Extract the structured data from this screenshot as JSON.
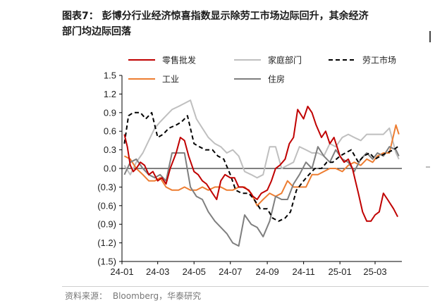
{
  "title": {
    "line1": "图表7：   彭博分行业经济惊喜指数显示除劳工市场边际回升，其余经济",
    "line2": "部门均边际回落"
  },
  "source": {
    "label": "资料来源：",
    "text": "Bloomberg，华泰研究"
  },
  "colors": {
    "retail": "#c00000",
    "household": "#bfbfbf",
    "labor": "#000000",
    "industry": "#ed7d31",
    "housing": "#7f7f7f"
  },
  "chart_data": {
    "type": "line",
    "title": "",
    "xlabel": "",
    "ylabel": "",
    "ylim": [
      -1.5,
      1.5
    ],
    "yticks": [
      1.5,
      1.2,
      0.9,
      0.6,
      0.3,
      0.0,
      -0.3,
      -0.6,
      -0.9,
      -1.2,
      -1.5
    ],
    "ytick_labels": [
      "1.5",
      "1.2",
      "0.9",
      "0.6",
      "0.3",
      "0.0",
      "(0.3)",
      "(0.6)",
      "(0.9)",
      "(1.2)",
      "(1.5)"
    ],
    "xlim": [
      "2024-01-01",
      "2025-04-15"
    ],
    "xtick_labels": [
      "24-01",
      "24-03",
      "24-05",
      "24-07",
      "24-09",
      "24-11",
      "25-01",
      "25-03"
    ],
    "xtick_dates": [
      "2024-01-01",
      "2024-03-01",
      "2024-05-01",
      "2024-07-01",
      "2024-09-01",
      "2024-11-01",
      "2025-01-01",
      "2025-03-01"
    ],
    "legend_position": "top",
    "series": [
      {
        "name": "零售批发",
        "key": "retail",
        "dash": "solid",
        "x": [
          "2024-01-05",
          "2024-01-10",
          "2024-01-15",
          "2024-01-20",
          "2024-01-25",
          "2024-02-01",
          "2024-02-08",
          "2024-02-15",
          "2024-02-22",
          "2024-03-01",
          "2024-03-08",
          "2024-03-15",
          "2024-03-22",
          "2024-04-01",
          "2024-04-08",
          "2024-04-15",
          "2024-04-22",
          "2024-05-01",
          "2024-05-08",
          "2024-05-15",
          "2024-05-22",
          "2024-06-01",
          "2024-06-08",
          "2024-06-15",
          "2024-06-22",
          "2024-07-01",
          "2024-07-08",
          "2024-07-15",
          "2024-07-22",
          "2024-08-01",
          "2024-08-08",
          "2024-08-15",
          "2024-08-22",
          "2024-09-01",
          "2024-09-08",
          "2024-09-15",
          "2024-09-22",
          "2024-10-01",
          "2024-10-08",
          "2024-10-15",
          "2024-10-22",
          "2024-11-01",
          "2024-11-08",
          "2024-11-15",
          "2024-11-22",
          "2024-12-01",
          "2024-12-08",
          "2024-12-15",
          "2024-12-22",
          "2025-01-01",
          "2025-01-08",
          "2025-01-15",
          "2025-01-22",
          "2025-02-01",
          "2025-02-08",
          "2025-02-15",
          "2025-02-22",
          "2025-03-01",
          "2025-03-08",
          "2025-03-15",
          "2025-03-22",
          "2025-04-01",
          "2025-04-08"
        ],
        "y": [
          0.55,
          0.35,
          0.05,
          -0.05,
          0.0,
          0.1,
          0.05,
          -0.1,
          -0.05,
          -0.2,
          -0.15,
          -0.25,
          0.0,
          0.25,
          0.5,
          0.45,
          0.2,
          -0.05,
          -0.1,
          -0.2,
          -0.25,
          -0.4,
          -0.5,
          -0.2,
          -0.1,
          -0.15,
          -0.15,
          -0.3,
          -0.3,
          -0.35,
          -0.45,
          -0.5,
          -0.4,
          -0.35,
          -0.2,
          0.0,
          0.05,
          0.15,
          0.4,
          0.5,
          0.95,
          0.8,
          1.0,
          0.9,
          0.7,
          0.5,
          0.6,
          0.4,
          0.5,
          0.2,
          0.1,
          0.15,
          0.0,
          -0.4,
          -0.7,
          -0.85,
          -0.85,
          -0.75,
          -0.7,
          -0.4,
          -0.5,
          -0.65,
          -0.78
        ]
      },
      {
        "name": "家庭部门",
        "key": "household",
        "dash": "solid",
        "x": [
          "2024-01-05",
          "2024-01-15",
          "2024-01-25",
          "2024-02-05",
          "2024-02-15",
          "2024-02-25",
          "2024-03-05",
          "2024-03-15",
          "2024-03-25",
          "2024-04-05",
          "2024-04-15",
          "2024-04-25",
          "2024-05-05",
          "2024-05-15",
          "2024-05-25",
          "2024-06-05",
          "2024-06-15",
          "2024-06-25",
          "2024-07-05",
          "2024-07-15",
          "2024-07-25",
          "2024-08-05",
          "2024-08-15",
          "2024-08-25",
          "2024-09-05",
          "2024-09-15",
          "2024-09-25",
          "2024-10-05",
          "2024-10-15",
          "2024-10-25",
          "2024-11-05",
          "2024-11-15",
          "2024-11-25",
          "2024-12-05",
          "2024-12-15",
          "2024-12-25",
          "2025-01-05",
          "2025-01-15",
          "2025-01-25",
          "2025-02-05",
          "2025-02-15",
          "2025-02-25",
          "2025-03-05",
          "2025-03-15",
          "2025-03-25",
          "2025-04-05",
          "2025-04-10"
        ],
        "y": [
          0.05,
          -0.1,
          0.1,
          0.25,
          0.45,
          0.65,
          0.75,
          0.85,
          0.95,
          1.0,
          1.05,
          1.1,
          0.8,
          0.65,
          0.5,
          0.4,
          0.35,
          0.25,
          0.3,
          0.2,
          -0.05,
          -0.1,
          -0.15,
          -0.1,
          0.35,
          0.35,
          0.0,
          0.05,
          0.1,
          0.35,
          0.3,
          0.25,
          0.25,
          0.2,
          0.4,
          0.35,
          0.5,
          0.55,
          0.5,
          0.45,
          0.55,
          0.55,
          0.55,
          0.55,
          0.65,
          0.25,
          0.15
        ]
      },
      {
        "name": "劳工市场",
        "key": "labor",
        "dash": "dashed",
        "x": [
          "2024-01-05",
          "2024-01-12",
          "2024-01-20",
          "2024-02-01",
          "2024-02-10",
          "2024-02-20",
          "2024-03-01",
          "2024-03-10",
          "2024-03-20",
          "2024-04-01",
          "2024-04-10",
          "2024-04-20",
          "2024-05-01",
          "2024-05-10",
          "2024-05-20",
          "2024-06-01",
          "2024-06-10",
          "2024-06-20",
          "2024-07-01",
          "2024-07-10",
          "2024-07-20",
          "2024-08-01",
          "2024-08-10",
          "2024-08-20",
          "2024-09-01",
          "2024-09-10",
          "2024-09-20",
          "2024-10-01",
          "2024-10-10",
          "2024-10-20",
          "2024-11-01",
          "2024-11-10",
          "2024-11-20",
          "2024-12-01",
          "2024-12-10",
          "2024-12-20",
          "2025-01-01",
          "2025-01-10",
          "2025-01-20",
          "2025-02-01",
          "2025-02-10",
          "2025-02-20",
          "2025-03-01",
          "2025-03-10",
          "2025-03-20",
          "2025-04-01",
          "2025-04-08"
        ],
        "y": [
          0.4,
          0.85,
          0.9,
          0.9,
          0.8,
          0.9,
          0.5,
          0.55,
          0.65,
          0.7,
          0.75,
          0.85,
          0.4,
          0.35,
          0.3,
          0.3,
          0.2,
          0.15,
          -0.1,
          -0.35,
          -0.4,
          -0.4,
          -0.5,
          -0.65,
          -0.65,
          -0.8,
          -0.85,
          -0.8,
          -0.7,
          -0.35,
          -0.2,
          -0.1,
          0.0,
          0.0,
          0.1,
          0.1,
          0.2,
          0.25,
          0.3,
          0.1,
          0.2,
          0.25,
          0.15,
          0.2,
          0.25,
          0.3,
          0.35
        ]
      },
      {
        "name": "工业",
        "key": "industry",
        "dash": "solid",
        "x": [
          "2024-01-05",
          "2024-01-15",
          "2024-01-25",
          "2024-02-05",
          "2024-02-15",
          "2024-02-25",
          "2024-03-05",
          "2024-03-15",
          "2024-03-25",
          "2024-04-05",
          "2024-04-15",
          "2024-04-25",
          "2024-05-05",
          "2024-05-15",
          "2024-05-25",
          "2024-06-05",
          "2024-06-15",
          "2024-06-25",
          "2024-07-05",
          "2024-07-15",
          "2024-07-25",
          "2024-08-05",
          "2024-08-15",
          "2024-08-25",
          "2024-09-05",
          "2024-09-15",
          "2024-09-25",
          "2024-10-05",
          "2024-10-15",
          "2024-10-25",
          "2024-11-05",
          "2024-11-15",
          "2024-11-25",
          "2024-12-05",
          "2024-12-15",
          "2024-12-25",
          "2025-01-05",
          "2025-01-15",
          "2025-01-25",
          "2025-02-05",
          "2025-02-15",
          "2025-02-25",
          "2025-03-05",
          "2025-03-15",
          "2025-03-25",
          "2025-04-05",
          "2025-04-10"
        ],
        "y": [
          0.2,
          0.15,
          0.0,
          -0.1,
          -0.2,
          -0.2,
          -0.15,
          -0.3,
          -0.35,
          -0.35,
          -0.3,
          -0.35,
          -0.35,
          -0.3,
          -0.35,
          -0.3,
          -0.3,
          -0.35,
          -0.35,
          -0.3,
          -0.3,
          -0.4,
          -0.6,
          -0.5,
          -0.4,
          -0.45,
          -0.4,
          -0.2,
          -0.3,
          -0.3,
          -0.3,
          -0.1,
          -0.1,
          -0.05,
          0.0,
          0.0,
          -0.05,
          0.05,
          0.1,
          0.05,
          0.15,
          0.1,
          0.2,
          0.25,
          0.25,
          0.7,
          0.55
        ]
      },
      {
        "name": "住房",
        "key": "housing",
        "dash": "solid",
        "x": [
          "2024-01-05",
          "2024-01-15",
          "2024-01-25",
          "2024-02-05",
          "2024-02-15",
          "2024-02-25",
          "2024-03-05",
          "2024-03-15",
          "2024-03-25",
          "2024-04-05",
          "2024-04-15",
          "2024-04-25",
          "2024-05-05",
          "2024-05-15",
          "2024-05-25",
          "2024-06-05",
          "2024-06-15",
          "2024-06-25",
          "2024-07-05",
          "2024-07-15",
          "2024-07-25",
          "2024-08-05",
          "2024-08-15",
          "2024-08-25",
          "2024-09-05",
          "2024-09-15",
          "2024-09-25",
          "2024-10-05",
          "2024-10-15",
          "2024-10-25",
          "2024-11-05",
          "2024-11-15",
          "2024-11-25",
          "2024-12-05",
          "2024-12-15",
          "2024-12-25",
          "2025-01-05",
          "2025-01-15",
          "2025-01-25",
          "2025-02-05",
          "2025-02-15",
          "2025-02-25",
          "2025-03-05",
          "2025-03-15",
          "2025-03-25",
          "2025-04-05",
          "2025-04-10"
        ],
        "y": [
          -0.1,
          0.1,
          0.15,
          0.0,
          -0.1,
          -0.15,
          -0.1,
          -0.2,
          0.25,
          0.25,
          0.25,
          -0.3,
          -0.45,
          -0.5,
          -0.7,
          -0.85,
          -0.95,
          -1.05,
          -1.2,
          -1.25,
          -0.75,
          -0.9,
          -0.95,
          -1.1,
          -0.85,
          -0.45,
          -0.5,
          -0.5,
          -0.25,
          -0.1,
          0.1,
          0.0,
          0.35,
          0.2,
          0.1,
          0.3,
          0.15,
          0.1,
          -0.05,
          0.15,
          0.25,
          0.15,
          0.25,
          0.2,
          0.35,
          0.3,
          0.2
        ]
      }
    ]
  }
}
